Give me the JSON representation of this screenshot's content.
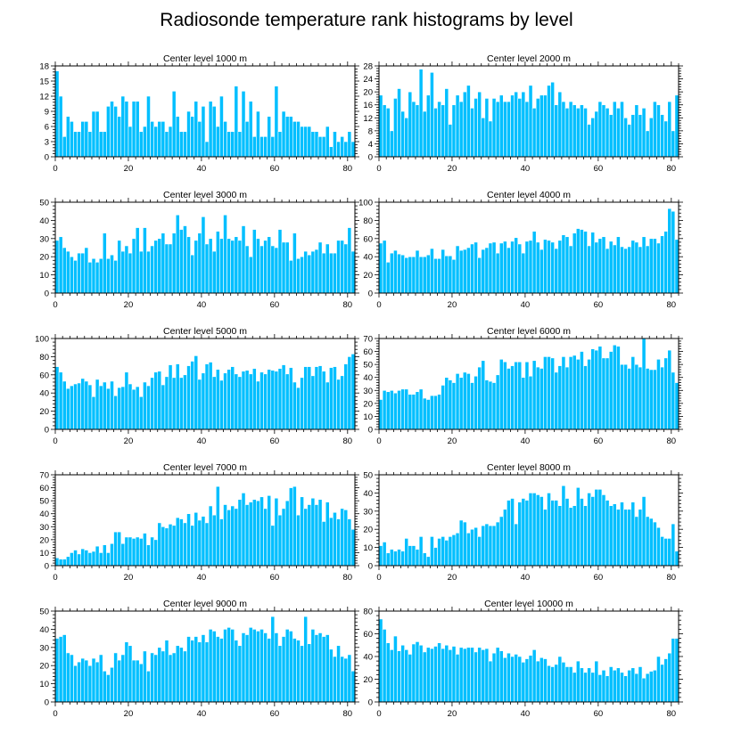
{
  "title": "Radiosonde temperature rank histograms by level",
  "colors": {
    "bar": "#00bfff",
    "bar_edge": "#ffffff",
    "axis": "#000000"
  },
  "chart_data": [
    {
      "type": "bar",
      "title": "Center level 1000 m",
      "x_start": 0,
      "xlim": [
        0,
        82
      ],
      "ylim": [
        0,
        18
      ],
      "xticks": [
        0,
        20,
        40,
        60,
        80
      ],
      "yticks": [
        0,
        3,
        6,
        9,
        12,
        15,
        18
      ],
      "values": [
        17,
        12,
        4,
        8,
        7,
        5,
        5,
        7,
        7,
        5,
        9,
        9,
        5,
        5,
        10,
        11,
        10,
        8,
        12,
        11,
        6,
        11,
        11,
        5,
        6,
        12,
        7,
        6,
        7,
        7,
        5,
        6,
        13,
        8,
        5,
        5,
        9,
        8,
        11,
        7,
        10,
        3,
        11,
        10,
        6,
        12,
        7,
        5,
        5,
        14,
        5,
        13,
        7,
        11,
        4,
        9,
        4,
        4,
        8,
        4,
        14,
        5,
        9,
        8,
        8,
        7,
        7,
        6,
        6,
        6,
        5,
        5,
        4,
        4,
        6,
        2,
        5,
        3,
        4,
        3,
        5,
        3
      ]
    },
    {
      "type": "bar",
      "title": "Center level 2000 m",
      "x_start": 0,
      "xlim": [
        0,
        82
      ],
      "ylim": [
        0,
        28
      ],
      "xticks": [
        0,
        20,
        40,
        60,
        80
      ],
      "yticks": [
        0,
        4,
        8,
        12,
        16,
        20,
        24,
        28
      ],
      "values": [
        19,
        16,
        15,
        8,
        18,
        21,
        14,
        12,
        20,
        17,
        16,
        27,
        14,
        19,
        26,
        15,
        17,
        16,
        21,
        10,
        16,
        19,
        17,
        20,
        22,
        15,
        18,
        20,
        12,
        18,
        11,
        18,
        17,
        19,
        17,
        17,
        19,
        20,
        18,
        20,
        17,
        22,
        15,
        18,
        19,
        19,
        22,
        23,
        16,
        20,
        17,
        15,
        17,
        16,
        15,
        16,
        15,
        10,
        12,
        14,
        17,
        16,
        15,
        13,
        17,
        15,
        17,
        12,
        10,
        13,
        16,
        13,
        15,
        8,
        12,
        17,
        16,
        13,
        11,
        17,
        8,
        19
      ]
    },
    {
      "type": "bar",
      "title": "Center level 3000 m",
      "x_start": 0,
      "xlim": [
        0,
        82
      ],
      "ylim": [
        0,
        50
      ],
      "xticks": [
        0,
        20,
        40,
        60,
        80
      ],
      "yticks": [
        0,
        10,
        20,
        30,
        40,
        50
      ],
      "values": [
        29,
        31,
        25,
        23,
        20,
        18,
        22,
        22,
        25,
        17,
        19,
        17,
        19,
        33,
        19,
        21,
        18,
        29,
        23,
        26,
        22,
        30,
        36,
        23,
        36,
        23,
        26,
        29,
        30,
        33,
        27,
        27,
        33,
        43,
        35,
        37,
        31,
        21,
        29,
        33,
        42,
        27,
        30,
        23,
        34,
        30,
        43,
        30,
        29,
        31,
        29,
        37,
        26,
        20,
        35,
        30,
        26,
        29,
        31,
        26,
        25,
        35,
        28,
        28,
        18,
        33,
        19,
        20,
        23,
        21,
        23,
        24,
        28,
        22,
        27,
        22,
        22,
        29,
        29,
        27,
        36,
        23
      ]
    },
    {
      "type": "bar",
      "title": "Center level 4000 m",
      "x_start": 0,
      "xlim": [
        0,
        82
      ],
      "ylim": [
        0,
        100
      ],
      "xticks": [
        0,
        20,
        40,
        60,
        80
      ],
      "yticks": [
        0,
        20,
        40,
        60,
        80,
        100
      ],
      "values": [
        55,
        58,
        34,
        44,
        47,
        43,
        42,
        39,
        40,
        40,
        47,
        40,
        40,
        42,
        49,
        38,
        38,
        48,
        41,
        41,
        37,
        52,
        47,
        48,
        50,
        54,
        56,
        39,
        48,
        50,
        55,
        56,
        44,
        55,
        57,
        50,
        57,
        61,
        54,
        44,
        57,
        58,
        68,
        56,
        48,
        59,
        58,
        56,
        49,
        58,
        64,
        62,
        52,
        66,
        71,
        70,
        68,
        52,
        67,
        56,
        60,
        62,
        49,
        57,
        53,
        62,
        51,
        49,
        51,
        58,
        56,
        51,
        62,
        52,
        60,
        60,
        55,
        63,
        68,
        93,
        90,
        59
      ]
    },
    {
      "type": "bar",
      "title": "Center level 5000 m",
      "x_start": 0,
      "xlim": [
        0,
        82
      ],
      "ylim": [
        0,
        100
      ],
      "xticks": [
        0,
        20,
        40,
        60,
        80
      ],
      "yticks": [
        0,
        20,
        40,
        60,
        80,
        100
      ],
      "values": [
        69,
        63,
        53,
        45,
        48,
        50,
        51,
        56,
        53,
        49,
        36,
        55,
        48,
        52,
        45,
        53,
        37,
        46,
        47,
        63,
        50,
        44,
        47,
        36,
        52,
        48,
        57,
        63,
        64,
        49,
        58,
        71,
        57,
        72,
        57,
        60,
        70,
        75,
        81,
        55,
        62,
        72,
        74,
        58,
        66,
        54,
        62,
        66,
        69,
        61,
        58,
        64,
        65,
        61,
        67,
        53,
        63,
        61,
        66,
        65,
        64,
        67,
        71,
        61,
        68,
        52,
        46,
        57,
        69,
        69,
        59,
        69,
        70,
        64,
        52,
        68,
        69,
        55,
        59,
        72,
        80,
        83
      ]
    },
    {
      "type": "bar",
      "title": "Center level 6000 m",
      "x_start": 0,
      "xlim": [
        0,
        82
      ],
      "ylim": [
        0,
        70
      ],
      "xticks": [
        0,
        20,
        40,
        60,
        80
      ],
      "yticks": [
        0,
        10,
        20,
        30,
        40,
        50,
        60,
        70
      ],
      "values": [
        23,
        30,
        29,
        30,
        28,
        30,
        31,
        31,
        27,
        27,
        29,
        31,
        24,
        23,
        26,
        26,
        27,
        34,
        40,
        38,
        36,
        43,
        40,
        44,
        43,
        36,
        41,
        48,
        53,
        38,
        37,
        36,
        42,
        54,
        52,
        47,
        49,
        52,
        52,
        40,
        52,
        41,
        53,
        48,
        47,
        56,
        56,
        55,
        44,
        49,
        56,
        48,
        56,
        57,
        54,
        60,
        49,
        54,
        62,
        61,
        64,
        55,
        55,
        60,
        65,
        64,
        50,
        50,
        47,
        56,
        50,
        48,
        70,
        47,
        46,
        46,
        54,
        48,
        55,
        61,
        44,
        36
      ]
    },
    {
      "type": "bar",
      "title": "Center level 7000 m",
      "x_start": 0,
      "xlim": [
        0,
        82
      ],
      "ylim": [
        0,
        70
      ],
      "xticks": [
        0,
        20,
        40,
        60,
        80
      ],
      "yticks": [
        0,
        10,
        20,
        30,
        40,
        50,
        60,
        70
      ],
      "values": [
        6,
        5,
        5,
        7,
        10,
        12,
        9,
        13,
        12,
        10,
        11,
        15,
        10,
        16,
        10,
        17,
        26,
        26,
        17,
        22,
        22,
        21,
        22,
        21,
        25,
        16,
        22,
        20,
        33,
        30,
        29,
        32,
        31,
        37,
        36,
        33,
        40,
        31,
        41,
        35,
        38,
        33,
        46,
        39,
        61,
        36,
        47,
        43,
        46,
        44,
        51,
        56,
        47,
        49,
        51,
        50,
        53,
        44,
        54,
        31,
        52,
        39,
        44,
        50,
        60,
        61,
        39,
        53,
        44,
        47,
        52,
        47,
        51,
        34,
        49,
        37,
        41,
        36,
        44,
        43,
        36,
        28
      ]
    },
    {
      "type": "bar",
      "title": "Center level 8000 m",
      "x_start": 0,
      "xlim": [
        0,
        82
      ],
      "ylim": [
        0,
        50
      ],
      "xticks": [
        0,
        20,
        40,
        60,
        80
      ],
      "yticks": [
        0,
        10,
        20,
        30,
        40,
        50
      ],
      "values": [
        11,
        13,
        7,
        9,
        8,
        9,
        8,
        15,
        11,
        11,
        9,
        16,
        7,
        5,
        16,
        10,
        15,
        16,
        14,
        16,
        17,
        18,
        25,
        24,
        18,
        20,
        21,
        16,
        22,
        23,
        22,
        22,
        24,
        27,
        31,
        36,
        37,
        23,
        35,
        37,
        36,
        40,
        40,
        39,
        38,
        31,
        40,
        36,
        36,
        33,
        44,
        37,
        32,
        33,
        43,
        37,
        33,
        40,
        38,
        42,
        42,
        39,
        36,
        33,
        34,
        31,
        35,
        31,
        31,
        35,
        27,
        31,
        38,
        27,
        26,
        24,
        21,
        16,
        15,
        15,
        23,
        8
      ]
    },
    {
      "type": "bar",
      "title": "Center level 9000 m",
      "x_start": 0,
      "xlim": [
        0,
        82
      ],
      "ylim": [
        0,
        50
      ],
      "xticks": [
        0,
        20,
        40,
        60,
        80
      ],
      "yticks": [
        0,
        10,
        20,
        30,
        40,
        50
      ],
      "values": [
        35,
        36,
        37,
        27,
        26,
        20,
        22,
        24,
        23,
        20,
        24,
        22,
        26,
        17,
        15,
        19,
        27,
        23,
        26,
        33,
        31,
        23,
        23,
        21,
        28,
        17,
        27,
        26,
        30,
        28,
        34,
        26,
        27,
        31,
        30,
        28,
        36,
        34,
        36,
        33,
        37,
        33,
        40,
        39,
        36,
        35,
        40,
        41,
        40,
        34,
        31,
        38,
        37,
        41,
        40,
        39,
        40,
        38,
        35,
        47,
        38,
        31,
        36,
        40,
        39,
        35,
        34,
        31,
        47,
        32,
        40,
        37,
        38,
        36,
        37,
        29,
        25,
        31,
        25,
        24,
        26,
        17
      ]
    },
    {
      "type": "bar",
      "title": "Center level 10000 m",
      "x_start": 0,
      "xlim": [
        0,
        82
      ],
      "ylim": [
        0,
        80
      ],
      "xticks": [
        0,
        20,
        40,
        60,
        80
      ],
      "yticks": [
        0,
        20,
        40,
        60,
        80
      ],
      "values": [
        73,
        64,
        52,
        46,
        58,
        45,
        50,
        46,
        42,
        51,
        53,
        50,
        44,
        48,
        47,
        49,
        52,
        47,
        50,
        46,
        49,
        42,
        48,
        47,
        48,
        48,
        44,
        48,
        46,
        47,
        36,
        43,
        48,
        45,
        39,
        43,
        40,
        42,
        40,
        35,
        38,
        41,
        46,
        36,
        39,
        38,
        32,
        31,
        33,
        40,
        35,
        31,
        31,
        26,
        36,
        30,
        26,
        30,
        26,
        36,
        24,
        28,
        23,
        31,
        28,
        30,
        26,
        23,
        28,
        30,
        25,
        31,
        21,
        25,
        27,
        28,
        40,
        33,
        38,
        43,
        56,
        56
      ]
    }
  ]
}
